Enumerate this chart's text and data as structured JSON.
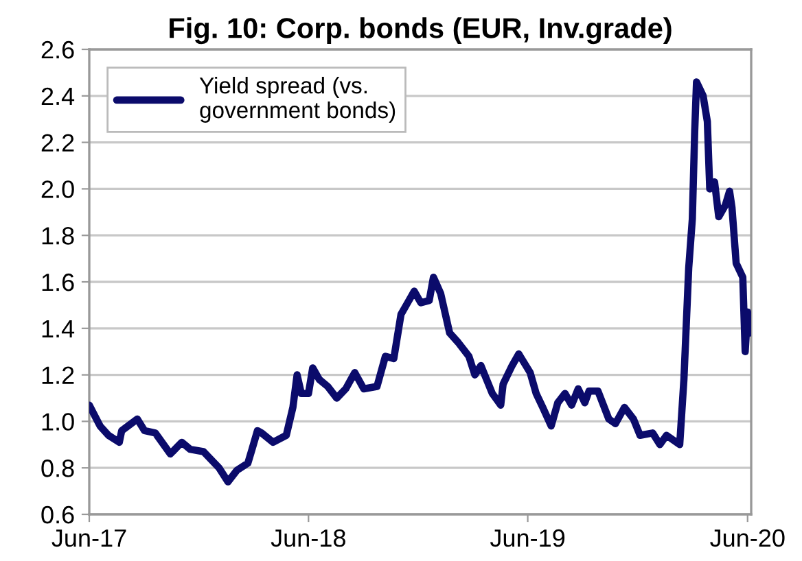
{
  "chart_data": {
    "type": "line",
    "title": "Fig. 10: Corp. bonds (EUR, Inv.grade)",
    "x": [
      "2017-06-01",
      "2017-06-19",
      "2017-07-03",
      "2017-07-21",
      "2017-07-25",
      "2017-08-20",
      "2017-09-01",
      "2017-09-19",
      "2017-10-14",
      "2017-11-02",
      "2017-11-16",
      "2017-12-08",
      "2018-01-03",
      "2018-01-18",
      "2018-02-02",
      "2018-02-20",
      "2018-02-27",
      "2018-03-08",
      "2018-03-15",
      "2018-04-03",
      "2018-04-25",
      "2018-05-06",
      "2018-05-13",
      "2018-05-20",
      "2018-06-01",
      "2018-06-08",
      "2018-06-19",
      "2018-07-03",
      "2018-07-18",
      "2018-08-02",
      "2018-08-17",
      "2018-09-01",
      "2018-09-23",
      "2018-10-07",
      "2018-10-21",
      "2018-11-02",
      "2018-11-13",
      "2018-11-24",
      "2018-12-05",
      "2018-12-19",
      "2018-12-26",
      "2019-01-07",
      "2019-01-22",
      "2019-02-05",
      "2019-02-23",
      "2019-03-05",
      "2019-03-15",
      "2019-04-03",
      "2019-04-17",
      "2019-04-21",
      "2019-05-06",
      "2019-05-17",
      "2019-06-05",
      "2019-06-15",
      "2019-06-26",
      "2019-07-10",
      "2019-07-21",
      "2019-08-02",
      "2019-08-13",
      "2019-08-24",
      "2019-09-04",
      "2019-09-11",
      "2019-09-26",
      "2019-10-14",
      "2019-10-25",
      "2019-11-09",
      "2019-11-24",
      "2019-12-05",
      "2019-12-26",
      "2020-01-07",
      "2020-01-18",
      "2020-02-09",
      "2020-02-16",
      "2020-02-24",
      "2020-03-01",
      "2020-03-05",
      "2020-03-08",
      "2020-03-19",
      "2020-03-26",
      "2020-03-30",
      "2020-04-07",
      "2020-04-14",
      "2020-04-25",
      "2020-05-02",
      "2020-05-06",
      "2020-05-13",
      "2020-05-24",
      "2020-05-28",
      "2020-06-01",
      "2020-06-04"
    ],
    "series": [
      {
        "name": "Yield spread (vs.\ngovernment bonds)",
        "color": "#0b0b6b",
        "values": [
          1.07,
          0.98,
          0.94,
          0.91,
          0.96,
          1.01,
          0.96,
          0.95,
          0.86,
          0.91,
          0.88,
          0.87,
          0.8,
          0.74,
          0.79,
          0.82,
          0.88,
          0.96,
          0.95,
          0.91,
          0.94,
          1.06,
          1.2,
          1.12,
          1.12,
          1.23,
          1.18,
          1.15,
          1.1,
          1.14,
          1.21,
          1.14,
          1.15,
          1.28,
          1.27,
          1.46,
          1.51,
          1.56,
          1.51,
          1.52,
          1.62,
          1.55,
          1.38,
          1.34,
          1.28,
          1.2,
          1.24,
          1.12,
          1.07,
          1.16,
          1.24,
          1.29,
          1.21,
          1.12,
          1.06,
          0.98,
          1.08,
          1.12,
          1.07,
          1.14,
          1.08,
          1.13,
          1.13,
          1.01,
          0.99,
          1.06,
          1.01,
          0.94,
          0.95,
          0.9,
          0.94,
          0.9,
          1.18,
          1.66,
          1.87,
          2.25,
          2.46,
          2.4,
          2.29,
          2.0,
          2.03,
          1.88,
          1.93,
          1.99,
          1.92,
          1.68,
          1.62,
          1.3,
          1.47,
          1.38
        ]
      }
    ],
    "xlim": [
      "2017-06-01",
      "2020-06-07"
    ],
    "xticks": [
      {
        "value": "2017-06-01",
        "label": "Jun-17"
      },
      {
        "value": "2018-06-01",
        "label": "Jun-18"
      },
      {
        "value": "2019-06-01",
        "label": "Jun-19"
      },
      {
        "value": "2020-06-01",
        "label": "Jun-20"
      }
    ],
    "ylim": [
      0.6,
      2.6
    ],
    "yticks": [
      {
        "value": 0.6,
        "label": "0.6"
      },
      {
        "value": 0.8,
        "label": "0.8"
      },
      {
        "value": 1.0,
        "label": "1.0"
      },
      {
        "value": 1.2,
        "label": "1.2"
      },
      {
        "value": 1.4,
        "label": "1.4"
      },
      {
        "value": 1.6,
        "label": "1.6"
      },
      {
        "value": 1.8,
        "label": "1.8"
      },
      {
        "value": 2.0,
        "label": "2.0"
      },
      {
        "value": 2.2,
        "label": "2.2"
      },
      {
        "value": 2.4,
        "label": "2.4"
      },
      {
        "value": 2.6,
        "label": "2.6"
      }
    ],
    "grid": "y",
    "legend": "top left",
    "marker": "none",
    "line_style": "solid"
  }
}
